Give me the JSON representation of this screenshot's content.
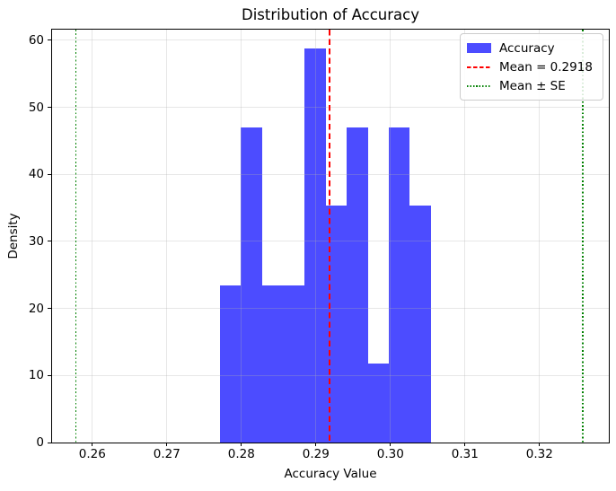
{
  "figure": {
    "title": "Distribution of Accuracy",
    "xlabel": "Accuracy Value",
    "ylabel": "Density"
  },
  "legend": {
    "items": [
      {
        "label": "Accuracy",
        "swatch": "patch",
        "color": "#4c4cff"
      },
      {
        "label": "Mean = 0.2918",
        "swatch": "dashed-line",
        "color": "#ff0000"
      },
      {
        "label": "Mean ± SE",
        "swatch": "dotted-line",
        "color": "#008000"
      }
    ]
  },
  "chart_data": {
    "type": "bar",
    "kind": "density-histogram",
    "title": "Distribution of Accuracy",
    "xlabel": "Accuracy Value",
    "ylabel": "Density",
    "xlim": [
      0.2546,
      0.3293
    ],
    "ylim": [
      0,
      61.6
    ],
    "xticks": [
      0.26,
      0.27,
      0.28,
      0.29,
      0.3,
      0.31,
      0.32
    ],
    "xtick_labels": [
      "0.26",
      "0.27",
      "0.28",
      "0.29",
      "0.30",
      "0.31",
      "0.32"
    ],
    "yticks": [
      0,
      10,
      20,
      30,
      40,
      50,
      60
    ],
    "ytick_labels": [
      "0",
      "10",
      "20",
      "30",
      "40",
      "50",
      "60"
    ],
    "grid": true,
    "grid_color": "#b0b0b0",
    "grid_alpha": 0.3,
    "bin_edges": [
      0.2771,
      0.2799,
      0.2828,
      0.2856,
      0.2884,
      0.2913,
      0.2941,
      0.297,
      0.2998,
      0.3026,
      0.3055
    ],
    "densities": [
      23.5,
      47.0,
      23.5,
      23.5,
      58.8,
      35.3,
      47.0,
      11.8,
      47.0,
      35.3
    ],
    "bar_color": "#4c4cff",
    "mean_line": {
      "value": 0.2918,
      "color": "#ff0000",
      "style": "dashed",
      "label": "Mean = 0.2918"
    },
    "se_lines": {
      "values": [
        0.2578,
        0.3258
      ],
      "color": "#008000",
      "style": "dotted",
      "label": "Mean ± SE"
    },
    "legend_entries": [
      "Accuracy",
      "Mean = 0.2918",
      "Mean ± SE"
    ],
    "legend_position": "upper right"
  }
}
